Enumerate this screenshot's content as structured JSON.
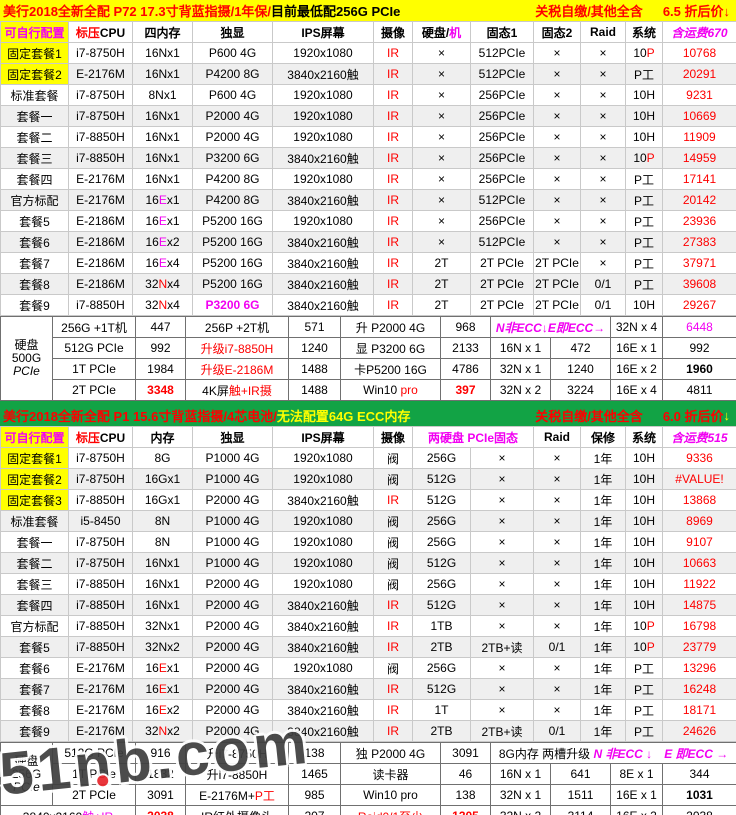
{
  "watermark": {
    "text": "51nb.com"
  },
  "colors": {
    "accent_yellow": "#ffff00",
    "accent_green": "#12a345",
    "price_red": "#fe0000",
    "magenta": "#f200f2",
    "row_alt": "#efefef"
  },
  "sections": [
    {
      "title": {
        "main": "美行2018全新全配 P72 17.3寸背蓝指摄/1年保/",
        "note": "目前最低配256G PCIe",
        "tax": "关税自缴/其他全含",
        "discount": "6.5 折后价↓"
      },
      "header": [
        {
          "t": "可自行配置",
          "cls": "mg b ylbg"
        },
        {
          "seg": [
            [
              "标压",
              "rd"
            ],
            [
              "CPU",
              ""
            ]
          ]
        },
        {
          "t": "四内存"
        },
        {
          "t": "独显"
        },
        {
          "t": "IPS屏幕"
        },
        {
          "t": "摄像"
        },
        {
          "seg": [
            [
              "硬盘/",
              ""
            ],
            [
              "机",
              "mg"
            ]
          ]
        },
        {
          "t": "固态1"
        },
        {
          "t": "固态2"
        },
        {
          "t": "Raid"
        },
        {
          "t": "系统"
        },
        {
          "t": "含运费670",
          "cls": "mg it"
        }
      ],
      "rows": [
        [
          {
            "t": "固定套餐1",
            "cls": "ylbg"
          },
          "i7-8750H",
          "16Nx1",
          "P600 4G",
          "1920x1080",
          {
            "t": "IR",
            "cls": "rd"
          },
          "×",
          "512PCIe",
          "×",
          "×",
          {
            "seg": [
              [
                "10",
                ""
              ],
              [
                "P",
                "rd"
              ]
            ]
          },
          {
            "t": "10768",
            "cls": "rd"
          }
        ],
        [
          {
            "t": "固定套餐2",
            "cls": "ylbg"
          },
          "E-2176M",
          "16Nx1",
          "P4200 8G",
          "3840x2160触",
          {
            "t": "IR",
            "cls": "rd"
          },
          "×",
          "512PCIe",
          "×",
          "×",
          "P工",
          {
            "t": "20291",
            "cls": "rd"
          }
        ],
        [
          "标准套餐",
          "i7-8750H",
          "8Nx1",
          "P600 4G",
          "1920x1080",
          {
            "t": "IR",
            "cls": "rd"
          },
          "×",
          "256PCIe",
          "×",
          "×",
          "10H",
          {
            "t": "9231",
            "cls": "rd"
          }
        ],
        [
          "套餐一",
          "i7-8750H",
          "16Nx1",
          "P2000 4G",
          "1920x1080",
          {
            "t": "IR",
            "cls": "rd"
          },
          "×",
          "256PCIe",
          "×",
          "×",
          "10H",
          {
            "t": "10669",
            "cls": "rd"
          }
        ],
        [
          "套餐二",
          "i7-8850H",
          "16Nx1",
          "P2000 4G",
          "1920x1080",
          {
            "t": "IR",
            "cls": "rd"
          },
          "×",
          "256PCIe",
          "×",
          "×",
          "10H",
          {
            "t": "11909",
            "cls": "rd"
          }
        ],
        [
          "套餐三",
          "i7-8850H",
          "16Nx1",
          "P3200 6G",
          "3840x2160触",
          {
            "t": "IR",
            "cls": "rd"
          },
          "×",
          "256PCIe",
          "×",
          "×",
          {
            "seg": [
              [
                "10",
                ""
              ],
              [
                "P",
                "rd"
              ]
            ]
          },
          {
            "t": "14959",
            "cls": "rd"
          }
        ],
        [
          "套餐四",
          "E-2176M",
          "16Nx1",
          "P4200 8G",
          "1920x1080",
          {
            "t": "IR",
            "cls": "rd"
          },
          "×",
          "256PCIe",
          "×",
          "×",
          "P工",
          {
            "t": "17141",
            "cls": "rd"
          }
        ],
        [
          "官方标配",
          "E-2176M",
          {
            "seg": [
              [
                "16",
                ""
              ],
              [
                "E",
                "mg"
              ],
              [
                "x1",
                ""
              ]
            ]
          },
          "P4200 8G",
          "3840x2160触",
          {
            "t": "IR",
            "cls": "rd"
          },
          "×",
          "512PCIe",
          "×",
          "×",
          "P工",
          {
            "t": "20142",
            "cls": "rd"
          }
        ],
        [
          "套餐5",
          "E-2186M",
          {
            "seg": [
              [
                "16",
                ""
              ],
              [
                "E",
                "mg"
              ],
              [
                "x1",
                ""
              ]
            ]
          },
          "P5200 16G",
          "1920x1080",
          {
            "t": "IR",
            "cls": "rd"
          },
          "×",
          "256PCIe",
          "×",
          "×",
          "P工",
          {
            "t": "23936",
            "cls": "rd"
          }
        ],
        [
          "套餐6",
          "E-2186M",
          {
            "seg": [
              [
                "16",
                ""
              ],
              [
                "E",
                "mg"
              ],
              [
                "x2",
                ""
              ]
            ]
          },
          "P5200 16G",
          "3840x2160触",
          {
            "t": "IR",
            "cls": "rd"
          },
          "×",
          "512PCIe",
          "×",
          "×",
          "P工",
          {
            "t": "27383",
            "cls": "rd"
          }
        ],
        [
          "套餐7",
          "E-2186M",
          {
            "seg": [
              [
                "16",
                ""
              ],
              [
                "E",
                "mg"
              ],
              [
                "x4",
                ""
              ]
            ]
          },
          "P5200 16G",
          "3840x2160触",
          {
            "t": "IR",
            "cls": "rd"
          },
          "2T",
          "2T PCIe",
          "2T PCIe",
          "×",
          "P工",
          {
            "t": "37971",
            "cls": "rd"
          }
        ],
        [
          "套餐8",
          "E-2186M",
          {
            "seg": [
              [
                "32",
                ""
              ],
              [
                "N",
                "rd"
              ],
              [
                "x4",
                ""
              ]
            ]
          },
          "P5200 16G",
          "3840x2160触",
          {
            "t": "IR",
            "cls": "rd"
          },
          "2T",
          "2T PCIe",
          "2T PCIe",
          "0/1",
          "P工",
          {
            "t": "39608",
            "cls": "rd"
          }
        ],
        [
          "套餐9",
          "i7-8850H",
          {
            "seg": [
              [
                "32",
                ""
              ],
              [
                "N",
                "rd"
              ],
              [
                "x4",
                ""
              ]
            ]
          },
          {
            "t": "P3200 6G",
            "cls": "mg b"
          },
          "3840x2160触",
          {
            "t": "IR",
            "cls": "rd"
          },
          "2T",
          "2T PCIe",
          "2T PCIe",
          "0/1",
          "10H",
          {
            "t": "29267",
            "cls": "rd"
          }
        ]
      ],
      "upgrade": [
        [
          {
            "lines": [
              [
                "硬盘",
                ""
              ],
              [
                "500G",
                ""
              ],
              [
                "PCIe",
                "it"
              ]
            ],
            "cls": "lbl",
            "rows": 4
          },
          "256G +1T机",
          "447",
          "256P +2T机",
          "571",
          "升 P2000 4G",
          "968",
          {
            "t": "N非ECC↓E即ECC→",
            "cls": "mg b it",
            "span": 2
          },
          "32N x 4",
          {
            "t": "6448",
            "cls": "mg"
          }
        ],
        [
          "512G PCIe",
          "992",
          {
            "t": "升级i7-8850H",
            "cls": "rd"
          },
          "1240",
          "显 P3200 6G",
          "2133",
          "16N x 1",
          "472",
          "16E x 1",
          "992"
        ],
        [
          "1T PCIe",
          "1984",
          {
            "t": "升级E-2186M",
            "cls": "rd"
          },
          "1488",
          "卡P5200 16G",
          "4786",
          "32N x 1",
          "1240",
          "16E x 2",
          {
            "t": "1960",
            "cls": "b"
          }
        ],
        [
          "2T PCIe",
          {
            "t": "3348",
            "cls": "rd b"
          },
          {
            "seg": [
              [
                "4K屏",
                ""
              ],
              [
                "触+IR摄",
                "rd"
              ]
            ]
          },
          "1488",
          {
            "seg": [
              [
                "Win10 ",
                ""
              ],
              [
                "pro",
                "rd"
              ]
            ]
          },
          {
            "t": "397",
            "cls": "rd b"
          },
          "32N x 2",
          "3224",
          "16E x 4",
          "4811"
        ]
      ]
    },
    {
      "title": {
        "main": "美行2018全新全配 P1 15.6寸背蓝指摄/4芯电池/",
        "note": "无法配置64G ECC内存",
        "tax": "关税自缴/其他全含",
        "discount": "6.0 折后价",
        "arrow": "↓"
      },
      "header": [
        {
          "t": "可自行配置",
          "cls": "mg b ylbg"
        },
        {
          "seg": [
            [
              "标压",
              "rd"
            ],
            [
              "CPU",
              ""
            ]
          ]
        },
        {
          "t": "内存"
        },
        {
          "t": "独显"
        },
        {
          "t": "IPS屏幕"
        },
        {
          "t": "摄像"
        },
        {
          "t": "两硬盘 PCIe固态",
          "cls": "mg",
          "span": 2
        },
        {
          "t": "Raid"
        },
        {
          "t": "保修"
        },
        {
          "t": "系统"
        },
        {
          "t": "含运费515",
          "cls": "mg it"
        }
      ],
      "rows": [
        [
          {
            "t": "固定套餐1",
            "cls": "ylbg"
          },
          "i7-8750H",
          "8G",
          "P1000 4G",
          "1920x1080",
          "阀",
          "256G",
          "×",
          "×",
          "1年",
          "10H",
          {
            "t": "9336",
            "cls": "rd"
          }
        ],
        [
          {
            "t": "固定套餐2",
            "cls": "ylbg"
          },
          "i7-8750H",
          "16Gx1",
          "P1000 4G",
          "1920x1080",
          "阀",
          "512G",
          "×",
          "×",
          "1年",
          "10H",
          {
            "t": "#VALUE!",
            "cls": "rd"
          }
        ],
        [
          {
            "t": "固定套餐3",
            "cls": "ylbg"
          },
          "i7-8850H",
          "16Gx1",
          "P2000 4G",
          "3840x2160触",
          {
            "t": "IR",
            "cls": "rd"
          },
          "512G",
          "×",
          "×",
          "1年",
          "10H",
          {
            "t": "13868",
            "cls": "rd"
          }
        ],
        [
          "标准套餐",
          "i5-8450",
          "8N",
          "P1000 4G",
          "1920x1080",
          "阀",
          "256G",
          "×",
          "×",
          "1年",
          "10H",
          {
            "t": "8969",
            "cls": "rd"
          }
        ],
        [
          "套餐一",
          "i7-8750H",
          "8N",
          "P1000 4G",
          "1920x1080",
          "阀",
          "256G",
          "×",
          "×",
          "1年",
          "10H",
          {
            "t": "9107",
            "cls": "rd"
          }
        ],
        [
          "套餐二",
          "i7-8750H",
          "16Nx1",
          "P1000 4G",
          "1920x1080",
          "阀",
          "512G",
          "×",
          "×",
          "1年",
          "10H",
          {
            "t": "10663",
            "cls": "rd"
          }
        ],
        [
          "套餐三",
          "i7-8850H",
          "16Nx1",
          "P2000 4G",
          "1920x1080",
          "阀",
          "256G",
          "×",
          "×",
          "1年",
          "10H",
          {
            "t": "11922",
            "cls": "rd"
          }
        ],
        [
          "套餐四",
          "i7-8850H",
          "16Nx1",
          "P2000 4G",
          "3840x2160触",
          {
            "t": "IR",
            "cls": "rd"
          },
          "512G",
          "×",
          "×",
          "1年",
          "10H",
          {
            "t": "14875",
            "cls": "rd"
          }
        ],
        [
          "官方标配",
          "i7-8850H",
          "32Nx1",
          "P2000 4G",
          "3840x2160触",
          {
            "t": "IR",
            "cls": "rd"
          },
          "1TB",
          "×",
          "×",
          "1年",
          {
            "seg": [
              [
                "10",
                ""
              ],
              [
                "P",
                "rd"
              ]
            ]
          },
          {
            "t": "16798",
            "cls": "rd"
          }
        ],
        [
          "套餐5",
          "i7-8850H",
          "32Nx2",
          "P2000 4G",
          "3840x2160触",
          {
            "t": "IR",
            "cls": "rd"
          },
          "2TB",
          "2TB+读",
          "0/1",
          "1年",
          {
            "seg": [
              [
                "10",
                ""
              ],
              [
                "P",
                "rd"
              ]
            ]
          },
          {
            "t": "23779",
            "cls": "rd"
          }
        ],
        [
          "套餐6",
          "E-2176M",
          {
            "seg": [
              [
                "16",
                ""
              ],
              [
                "E",
                "rd"
              ],
              [
                "x1",
                ""
              ]
            ]
          },
          "P2000 4G",
          "1920x1080",
          "阀",
          "256G",
          "×",
          "×",
          "1年",
          "P工",
          {
            "t": "13296",
            "cls": "rd"
          }
        ],
        [
          "套餐7",
          "E-2176M",
          {
            "seg": [
              [
                "16",
                ""
              ],
              [
                "E",
                "rd"
              ],
              [
                "x1",
                ""
              ]
            ]
          },
          "P2000 4G",
          "3840x2160触",
          {
            "t": "IR",
            "cls": "rd"
          },
          "512G",
          "×",
          "×",
          "1年",
          "P工",
          {
            "t": "16248",
            "cls": "rd"
          }
        ],
        [
          "套餐8",
          "E-2176M",
          {
            "seg": [
              [
                "16",
                ""
              ],
              [
                "E",
                "rd"
              ],
              [
                "x2",
                ""
              ]
            ]
          },
          "P2000 4G",
          "3840x2160触",
          {
            "t": "IR",
            "cls": "rd"
          },
          "1T",
          "×",
          "×",
          "1年",
          "P工",
          {
            "t": "18171",
            "cls": "rd"
          }
        ],
        [
          "套餐9",
          "E-2176M",
          {
            "seg": [
              [
                "32",
                ""
              ],
              [
                "N",
                "rd"
              ],
              [
                "x2",
                ""
              ]
            ]
          },
          "P2000 4G",
          "3840x2160触",
          {
            "t": "IR",
            "cls": "rd"
          },
          "2TB",
          "2TB+读",
          "0/1",
          "1年",
          "P工",
          {
            "t": "24626",
            "cls": "rd"
          }
        ]
      ],
      "upgrade": [
        [
          {
            "lines": [
              [
                "硬盘",
                ""
              ],
              [
                "256G",
                ""
              ],
              [
                "PCIe",
                "it"
              ]
            ],
            "cls": "lbl",
            "rows": 3
          },
          "512G PCIe",
          "916",
          "升i7-8750H",
          "138",
          "独 P2000 4G",
          "3091",
          {
            "seg": [
              [
                "8G内存 两槽升级 ",
                ""
              ],
              [
                "N 非ECC ↓",
                "mg b it"
              ],
              [
                "　",
                ""
              ],
              [
                "E 即ECC →",
                "mg b it"
              ]
            ],
            "span": 4
          }
        ],
        [
          "1T PCIe",
          "1832",
          "升i7-8850H",
          "1465",
          "读卡器",
          "46",
          "16N x 1",
          "641",
          "8E x 1",
          "344"
        ],
        [
          "2T PCIe",
          "3091",
          {
            "seg": [
              [
                "E-2176M+",
                ""
              ],
              [
                "P工",
                "rd"
              ]
            ]
          },
          "985",
          "Win10 pro",
          "138",
          "32N x 1",
          "1511",
          "16E x 1",
          {
            "t": "1031",
            "cls": "b"
          }
        ],
        [
          {
            "seg": [
              [
                "3840x2160",
                ""
              ],
              [
                "触+IR",
                "mg"
              ]
            ],
            "span": 2
          },
          {
            "t": "2038",
            "cls": "rd b"
          },
          "IR红外摄像头",
          "207",
          {
            "t": "Raid0/1至少",
            "cls": "rd"
          },
          {
            "t": "1305",
            "cls": "rd b"
          },
          "32N x 2",
          "3114",
          "16E x 2",
          "2038"
        ]
      ]
    }
  ]
}
